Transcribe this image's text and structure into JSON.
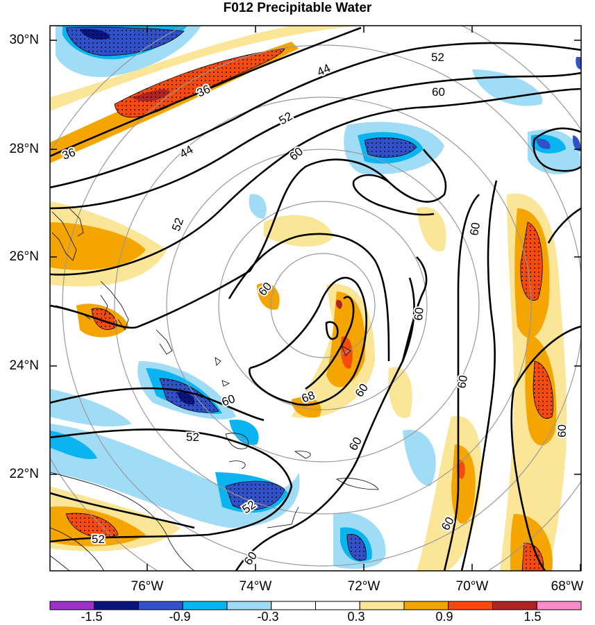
{
  "title": "F012 Precipitable Water",
  "axes": {
    "lat_labels": [
      "30°N",
      "28°N",
      "26°N",
      "24°N",
      "22°N"
    ],
    "lon_labels": [
      "76°W",
      "74°W",
      "72°W",
      "70°W",
      "68°W"
    ]
  },
  "contour_labels": [
    "36",
    "36",
    "44",
    "44",
    "52",
    "52",
    "52",
    "52",
    "52",
    "52",
    "60",
    "60",
    "60",
    "60",
    "60",
    "60",
    "60",
    "60",
    "60",
    "60",
    "68"
  ],
  "colorbar": {
    "colors": [
      "#9c32c8",
      "#0a147d",
      "#3250c8",
      "#0ab4f0",
      "#a0dcf5",
      "#ffffff",
      "#ffffff",
      "#fae696",
      "#f5a500",
      "#f54b0f",
      "#af2323",
      "#ff8cc8"
    ],
    "labels": [
      "-1.5",
      "-0.9",
      "-0.3",
      "0.3",
      "0.9",
      "1.5"
    ]
  },
  "chart_data": {
    "type": "heatmap",
    "title": "F012 Precipitable Water",
    "variable": "Precipitable Water anomaly (shaded) with contours",
    "contour_levels": [
      36,
      44,
      52,
      60,
      68
    ],
    "shading_levels": [
      -1.5,
      -1.2,
      -0.9,
      -0.6,
      -0.3,
      0,
      0.3,
      0.6,
      0.9,
      1.2,
      1.5
    ],
    "lat_range_deg_n": [
      20.3,
      30.3
    ],
    "lon_range_deg_w": [
      77.8,
      67.8
    ],
    "center": {
      "lat": 24.6,
      "lon": -73.2
    }
  }
}
